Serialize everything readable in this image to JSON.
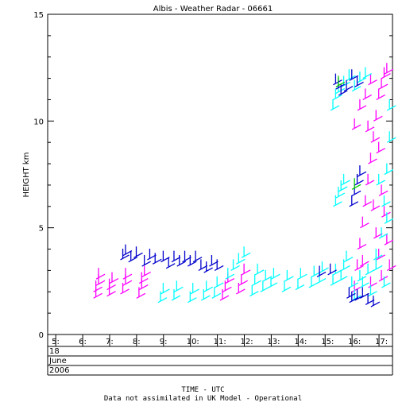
{
  "chart_data": {
    "type": "scatter",
    "title": "Albis - Weather Radar - 06661",
    "ylabel": "HEIGHT km",
    "xlabel": "TIME - UTC",
    "ylim": [
      0,
      15
    ],
    "yticks": [
      0,
      5,
      10,
      15
    ],
    "xlim": [
      4.7,
      17.5
    ],
    "xticks": [
      {
        "value": 5,
        "label": "5:"
      },
      {
        "value": 6,
        "label": "6:"
      },
      {
        "value": 7,
        "label": "7:"
      },
      {
        "value": 8,
        "label": "8:"
      },
      {
        "value": 9,
        "label": "9:"
      },
      {
        "value": 10,
        "label": "10:"
      },
      {
        "value": 11,
        "label": "11:"
      },
      {
        "value": 12,
        "label": "12:"
      },
      {
        "value": 13,
        "label": "13:"
      },
      {
        "value": 14,
        "label": "14:"
      },
      {
        "value": 15,
        "label": "15:"
      },
      {
        "value": 16,
        "label": "16:"
      },
      {
        "value": 17,
        "label": "17:"
      }
    ],
    "date_rows": [
      "18",
      "June",
      "2006"
    ],
    "footnote": "Data not assimilated in UK Model - Operational",
    "grid": false,
    "colors": {
      "magenta": "#ff00ff",
      "cyan": "#00ffff",
      "blue": "#0000cc",
      "green": "#00cc00"
    },
    "series": [
      {
        "color": "magenta",
        "points": [
          [
            6.4,
            1.7
          ],
          [
            6.4,
            2.0
          ],
          [
            6.5,
            2.3
          ],
          [
            6.5,
            2.6
          ],
          [
            6.9,
            1.8
          ],
          [
            6.9,
            2.1
          ],
          [
            7.0,
            2.4
          ],
          [
            7.4,
            1.9
          ],
          [
            7.5,
            2.3
          ],
          [
            7.5,
            2.6
          ],
          [
            8.0,
            1.7
          ],
          [
            8.1,
            2.1
          ],
          [
            8.1,
            2.4
          ],
          [
            8.2,
            2.7
          ],
          [
            11.1,
            1.6
          ],
          [
            11.2,
            2.0
          ],
          [
            11.3,
            2.4
          ],
          [
            11.7,
            1.9
          ],
          [
            11.8,
            2.3
          ],
          [
            11.9,
            2.8
          ],
          [
            16.0,
            2.0
          ],
          [
            16.1,
            3.0
          ],
          [
            16.2,
            4.0
          ],
          [
            16.3,
            5.0
          ],
          [
            16.4,
            6.0
          ],
          [
            16.5,
            7.0
          ],
          [
            16.6,
            8.0
          ],
          [
            16.7,
            9.0
          ],
          [
            16.8,
            10.0
          ],
          [
            16.9,
            11.0
          ],
          [
            17.0,
            11.5
          ],
          [
            17.1,
            12.0
          ],
          [
            17.2,
            12.2
          ],
          [
            16.8,
            4.5
          ],
          [
            16.9,
            3.5
          ],
          [
            17.0,
            2.5
          ],
          [
            17.1,
            5.5
          ],
          [
            17.2,
            4.2
          ],
          [
            16.5,
            9.5
          ],
          [
            16.9,
            8.5
          ],
          [
            16.0,
            9.6
          ],
          [
            16.2,
            10.5
          ],
          [
            16.4,
            11.0
          ],
          [
            16.6,
            11.7
          ],
          [
            17.3,
            3.0
          ],
          [
            17.0,
            6.5
          ],
          [
            16.7,
            5.8
          ],
          [
            16.3,
            3.2
          ],
          [
            16.6,
            2.2
          ]
        ]
      },
      {
        "color": "cyan",
        "points": [
          [
            8.8,
            1.5
          ],
          [
            8.9,
            1.9
          ],
          [
            9.3,
            1.6
          ],
          [
            9.4,
            2.0
          ],
          [
            9.9,
            1.5
          ],
          [
            10.0,
            1.9
          ],
          [
            10.4,
            1.6
          ],
          [
            10.5,
            2.0
          ],
          [
            10.8,
            1.7
          ],
          [
            10.9,
            2.2
          ],
          [
            11.3,
            2.6
          ],
          [
            11.5,
            3.0
          ],
          [
            11.7,
            3.3
          ],
          [
            11.9,
            3.6
          ],
          [
            12.2,
            1.8
          ],
          [
            12.3,
            2.3
          ],
          [
            12.4,
            2.8
          ],
          [
            12.6,
            2.0
          ],
          [
            12.7,
            2.5
          ],
          [
            12.9,
            2.2
          ],
          [
            13.0,
            2.6
          ],
          [
            13.4,
            2.0
          ],
          [
            13.5,
            2.5
          ],
          [
            13.9,
            2.1
          ],
          [
            14.0,
            2.6
          ],
          [
            14.4,
            2.2
          ],
          [
            14.5,
            2.7
          ],
          [
            14.7,
            2.4
          ],
          [
            14.8,
            2.9
          ],
          [
            15.2,
            2.3
          ],
          [
            15.3,
            2.8
          ],
          [
            15.5,
            2.5
          ],
          [
            15.6,
            3.0
          ],
          [
            15.7,
            3.4
          ],
          [
            15.3,
            6.0
          ],
          [
            15.4,
            6.4
          ],
          [
            15.5,
            6.7
          ],
          [
            15.6,
            7.0
          ],
          [
            15.2,
            10.5
          ],
          [
            15.3,
            11.0
          ],
          [
            15.4,
            11.3
          ],
          [
            15.6,
            11.6
          ],
          [
            15.8,
            11.9
          ],
          [
            16.0,
            11.4
          ],
          [
            16.2,
            11.8
          ],
          [
            16.4,
            12.0
          ],
          [
            16.0,
            1.6
          ],
          [
            16.3,
            2.2
          ],
          [
            16.5,
            2.8
          ],
          [
            16.8,
            3.5
          ],
          [
            17.0,
            4.5
          ],
          [
            17.1,
            6.0
          ],
          [
            17.2,
            7.5
          ],
          [
            17.3,
            9.0
          ],
          [
            17.3,
            10.5
          ],
          [
            17.2,
            5.2
          ],
          [
            16.9,
            7.0
          ],
          [
            16.8,
            3.0
          ],
          [
            17.1,
            2.2
          ],
          [
            16.6,
            1.8
          ],
          [
            16.2,
            2.5
          ],
          [
            15.9,
            2.2
          ]
        ]
      },
      {
        "color": "blue",
        "points": [
          [
            7.4,
            3.5
          ],
          [
            7.5,
            3.7
          ],
          [
            7.7,
            3.4
          ],
          [
            7.9,
            3.6
          ],
          [
            8.2,
            3.2
          ],
          [
            8.4,
            3.5
          ],
          [
            8.6,
            3.3
          ],
          [
            8.9,
            3.4
          ],
          [
            9.1,
            3.1
          ],
          [
            9.3,
            3.4
          ],
          [
            9.5,
            3.2
          ],
          [
            9.7,
            3.4
          ],
          [
            9.9,
            3.2
          ],
          [
            10.1,
            3.4
          ],
          [
            10.3,
            3.0
          ],
          [
            10.5,
            2.9
          ],
          [
            10.7,
            3.2
          ],
          [
            10.9,
            3.0
          ],
          [
            15.3,
            11.7
          ],
          [
            15.4,
            11.5
          ],
          [
            15.5,
            11.2
          ],
          [
            15.7,
            11.4
          ],
          [
            15.9,
            11.9
          ],
          [
            16.1,
            11.6
          ],
          [
            15.9,
            6.0
          ],
          [
            16.0,
            6.5
          ],
          [
            16.1,
            7.0
          ],
          [
            16.2,
            7.4
          ],
          [
            15.8,
            1.7
          ],
          [
            15.9,
            1.5
          ],
          [
            16.1,
            1.6
          ],
          [
            16.3,
            1.7
          ],
          [
            16.5,
            1.4
          ],
          [
            16.7,
            1.3
          ],
          [
            15.1,
            2.8
          ],
          [
            14.7,
            2.7
          ]
        ]
      },
      {
        "color": "green",
        "points": [
          [
            15.4,
            11.6
          ],
          [
            16.0,
            6.8
          ]
        ]
      }
    ]
  }
}
